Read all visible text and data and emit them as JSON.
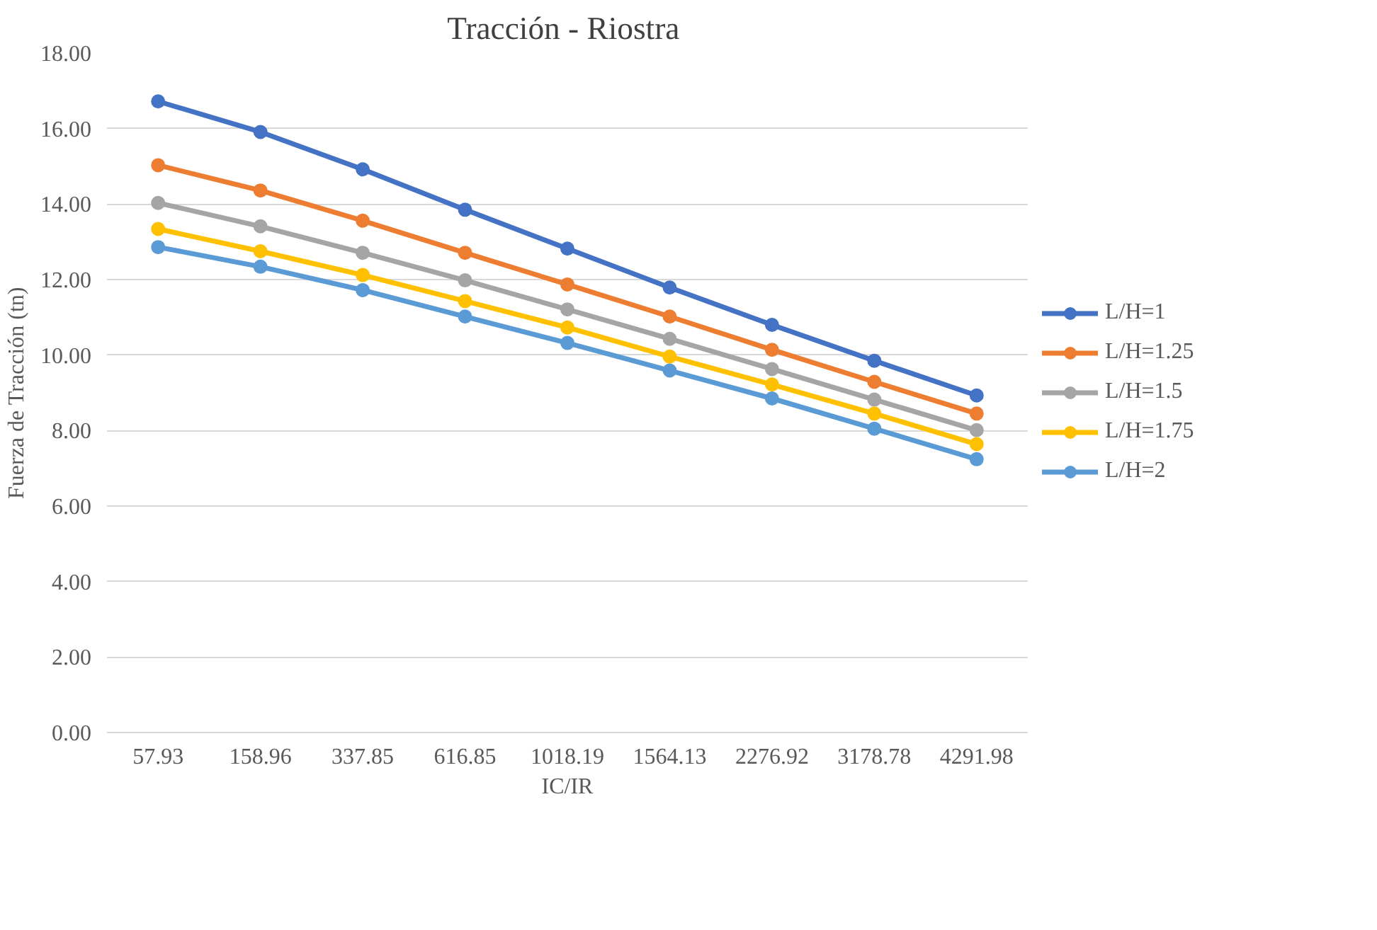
{
  "chart_data": {
    "type": "line",
    "title": "Tracción  - Riostra",
    "xlabel": "IC/IR",
    "ylabel": "Fuerza de Tracción (tn)",
    "categories": [
      "57.93",
      "158.96",
      "337.85",
      "616.85",
      "1018.19",
      "1564.13",
      "2276.92",
      "3178.78",
      "4291.98"
    ],
    "series": [
      {
        "name": "L/H=1",
        "color": "#4472c4",
        "values": [
          16.72,
          15.91,
          14.92,
          13.85,
          12.82,
          11.79,
          10.8,
          9.85,
          8.93
        ]
      },
      {
        "name": "L/H=1.25",
        "color": "#ed7d31",
        "values": [
          15.03,
          14.36,
          13.56,
          12.71,
          11.87,
          11.02,
          10.14,
          9.29,
          8.45
        ]
      },
      {
        "name": "L/H=1.5",
        "color": "#a5a5a5",
        "values": [
          14.03,
          13.41,
          12.71,
          11.98,
          11.21,
          10.43,
          9.63,
          8.82,
          8.01
        ]
      },
      {
        "name": "L/H=1.75",
        "color": "#ffc000",
        "values": [
          13.34,
          12.75,
          12.12,
          11.43,
          10.73,
          9.96,
          9.22,
          8.45,
          7.64
        ]
      },
      {
        "name": "L/H=2",
        "color": "#5b9bd5",
        "values": [
          12.86,
          12.34,
          11.72,
          11.02,
          10.32,
          9.59,
          8.85,
          8.05,
          7.24
        ]
      }
    ],
    "ylim": [
      0,
      18
    ],
    "yticks": [
      {
        "value": 0,
        "label": "0.00"
      },
      {
        "value": 2,
        "label": "2.00"
      },
      {
        "value": 4,
        "label": "4.00"
      },
      {
        "value": 6,
        "label": "6.00"
      },
      {
        "value": 8,
        "label": "8.00"
      },
      {
        "value": 10,
        "label": "10.00"
      },
      {
        "value": 12,
        "label": "12.00"
      },
      {
        "value": 14,
        "label": "14.00"
      },
      {
        "value": 16,
        "label": "16.00"
      },
      {
        "value": 18,
        "label": "18.00"
      }
    ],
    "grid": "y",
    "legend": "right",
    "marker": "circle",
    "line_style": "solid"
  }
}
